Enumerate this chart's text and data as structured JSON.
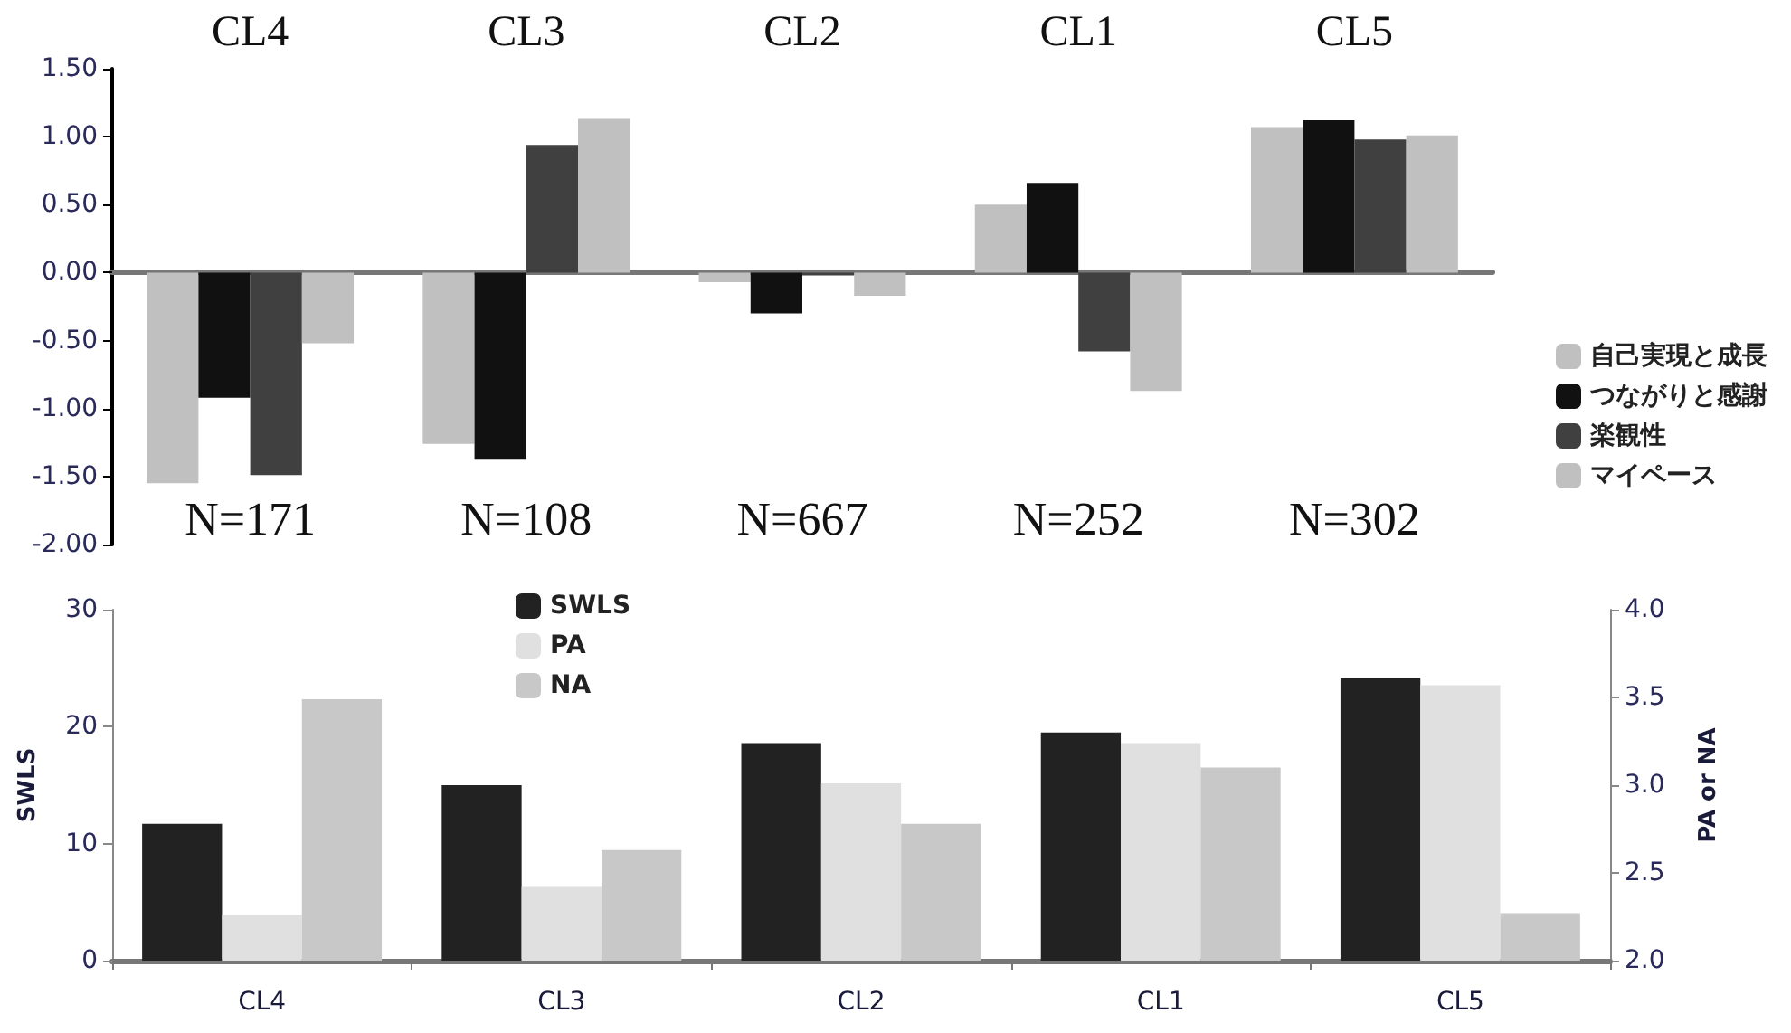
{
  "chart_data": [
    {
      "type": "bar",
      "categories": [
        "CL4",
        "CL3",
        "CL2",
        "CL1",
        "CL5"
      ],
      "series": [
        {
          "name": "自己実現と成長",
          "color": "#c0c0c0",
          "values": [
            -1.55,
            -1.26,
            -0.07,
            0.5,
            1.07
          ]
        },
        {
          "name": "つながりと感謝",
          "color": "#111111",
          "values": [
            -0.92,
            -1.37,
            -0.3,
            0.66,
            1.12
          ]
        },
        {
          "name": "楽観性",
          "color": "#404040",
          "values": [
            -1.49,
            0.94,
            -0.02,
            -0.58,
            0.98
          ]
        },
        {
          "name": "マイペース",
          "color": "#c0c0c0",
          "values": [
            -0.52,
            1.13,
            -0.17,
            -0.87,
            1.01
          ]
        }
      ],
      "ylim": [
        -2,
        1.5
      ],
      "yticks": [
        {
          "value": -2,
          "label": "-2.00"
        },
        {
          "value": -1.5,
          "label": "-1.50"
        },
        {
          "value": -1,
          "label": "-1.00"
        },
        {
          "value": -0.5,
          "label": "-0.50"
        },
        {
          "value": 0,
          "label": "0.00"
        },
        {
          "value": 0.5,
          "label": "0.50"
        },
        {
          "value": 1,
          "label": "1.00"
        },
        {
          "value": 1.5,
          "label": "1.50"
        }
      ],
      "annotations": [
        "N=171",
        "N=108",
        "N=667",
        "N=252",
        "N=302"
      ],
      "legend": "right"
    },
    {
      "type": "bar",
      "categories": [
        "CL4",
        "CL3",
        "CL2",
        "CL1",
        "CL5"
      ],
      "series": [
        {
          "name": "SWLS",
          "color": "#222222",
          "values": [
            11.7,
            15.0,
            18.6,
            19.5,
            24.2
          ]
        },
        {
          "name": "PA",
          "color": "#e0e0e0",
          "axis": "y2",
          "values": [
            2.26,
            2.42,
            3.01,
            3.24,
            3.57
          ]
        },
        {
          "name": "NA",
          "color": "#c8c8c8",
          "axis": "y2",
          "values": [
            3.49,
            2.63,
            2.78,
            3.1,
            2.27
          ]
        }
      ],
      "ylabel": "SWLS",
      "y2label": "PA or NA",
      "ylim": [
        0,
        30
      ],
      "yticks": [
        0,
        10,
        20,
        30
      ],
      "y2lim": [
        2,
        4
      ],
      "y2ticks": [
        {
          "value": 2,
          "label": "2.0"
        },
        {
          "value": 2.5,
          "label": "2.5"
        },
        {
          "value": 3,
          "label": "3.0"
        },
        {
          "value": 3.5,
          "label": "3.5"
        },
        {
          "value": 4,
          "label": "4.0"
        }
      ],
      "legend": "top left"
    }
  ]
}
